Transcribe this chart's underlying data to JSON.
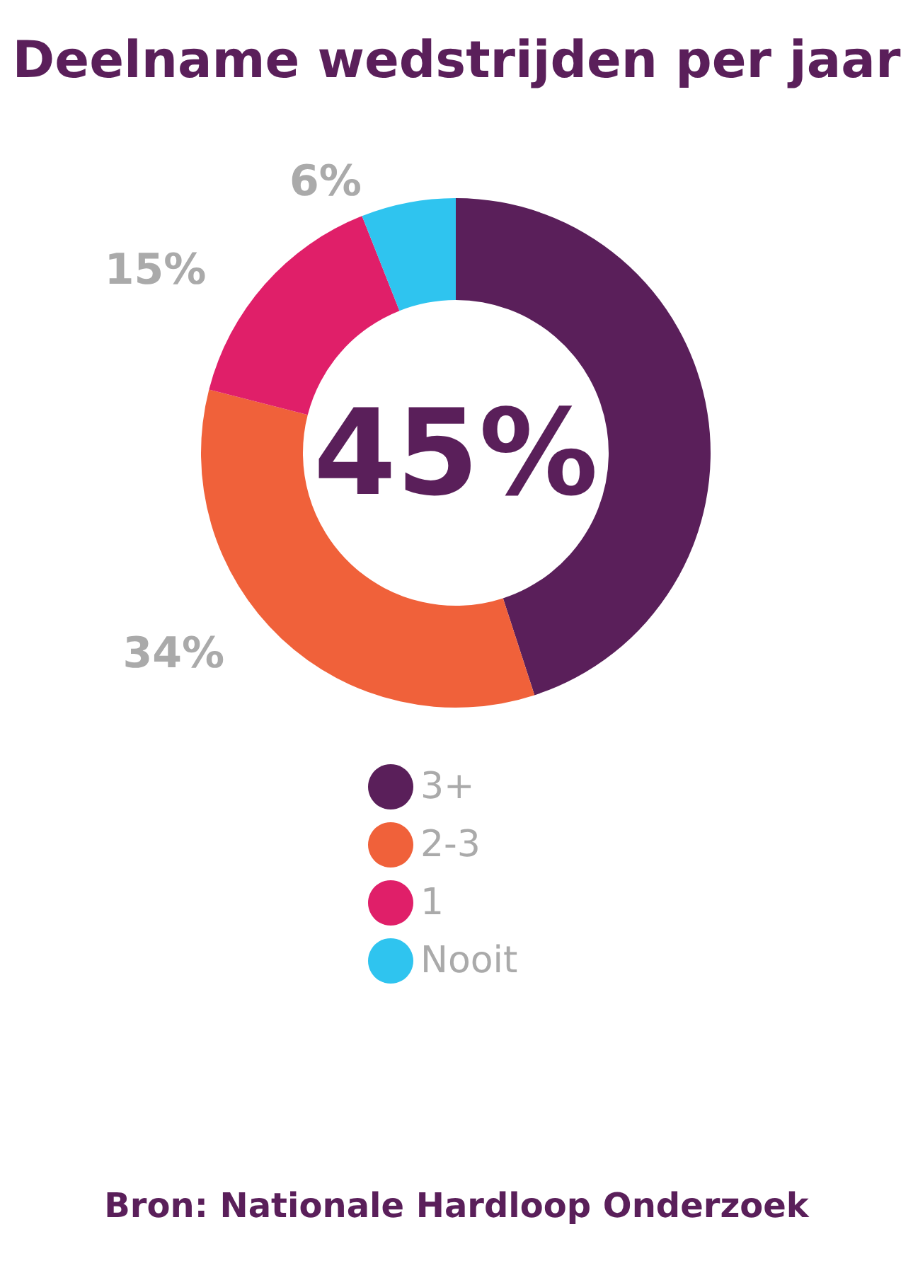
{
  "chart_data": {
    "type": "donut",
    "title": "Deelname wedstrijden per jaar",
    "categories": [
      "3+",
      "2-3",
      "1",
      "Nooit"
    ],
    "values": [
      45,
      34,
      15,
      6
    ],
    "colors": [
      "#5a1f5a",
      "#f0613a",
      "#e01f69",
      "#2fc4ef"
    ],
    "value_labels": [
      "45%",
      "34%",
      "15%",
      "6%"
    ],
    "legend": "bottom",
    "annotations": [
      "Bron: Nationale Hardloop Onderzoek"
    ]
  }
}
